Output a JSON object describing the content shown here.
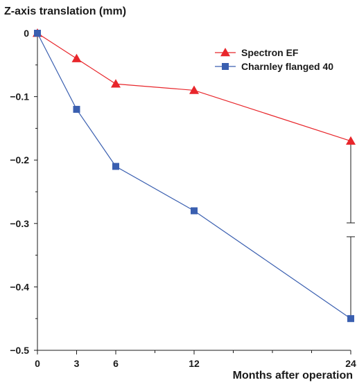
{
  "chart_data": {
    "type": "line",
    "ylabel": "Z-axis translation (mm)",
    "xlabel": "Months after operation",
    "x_ticks": [
      0,
      3,
      6,
      12,
      24
    ],
    "x_tick_labels": [
      "0",
      "3",
      "6",
      "12",
      "24"
    ],
    "y_ticks": [
      0,
      -0.1,
      -0.2,
      -0.3,
      -0.4,
      -0.5
    ],
    "y_tick_labels": [
      "0",
      "−0.1",
      "−0.2",
      "−0.3",
      "−0.4",
      "−0.5"
    ],
    "xlim": [
      0,
      24
    ],
    "ylim": [
      -0.5,
      0
    ],
    "grid": false,
    "legend_position": "top-right",
    "x": [
      0,
      3,
      6,
      12,
      24
    ],
    "series": [
      {
        "name": "Spectron EF",
        "values": [
          0,
          -0.04,
          -0.08,
          -0.09,
          -0.17
        ],
        "color": "#e8262b",
        "marker": "triangle"
      },
      {
        "name": "Charnley flanged 40",
        "values": [
          0,
          -0.12,
          -0.21,
          -0.28,
          -0.45
        ],
        "color": "#3a5fb0",
        "marker": "square"
      }
    ]
  }
}
